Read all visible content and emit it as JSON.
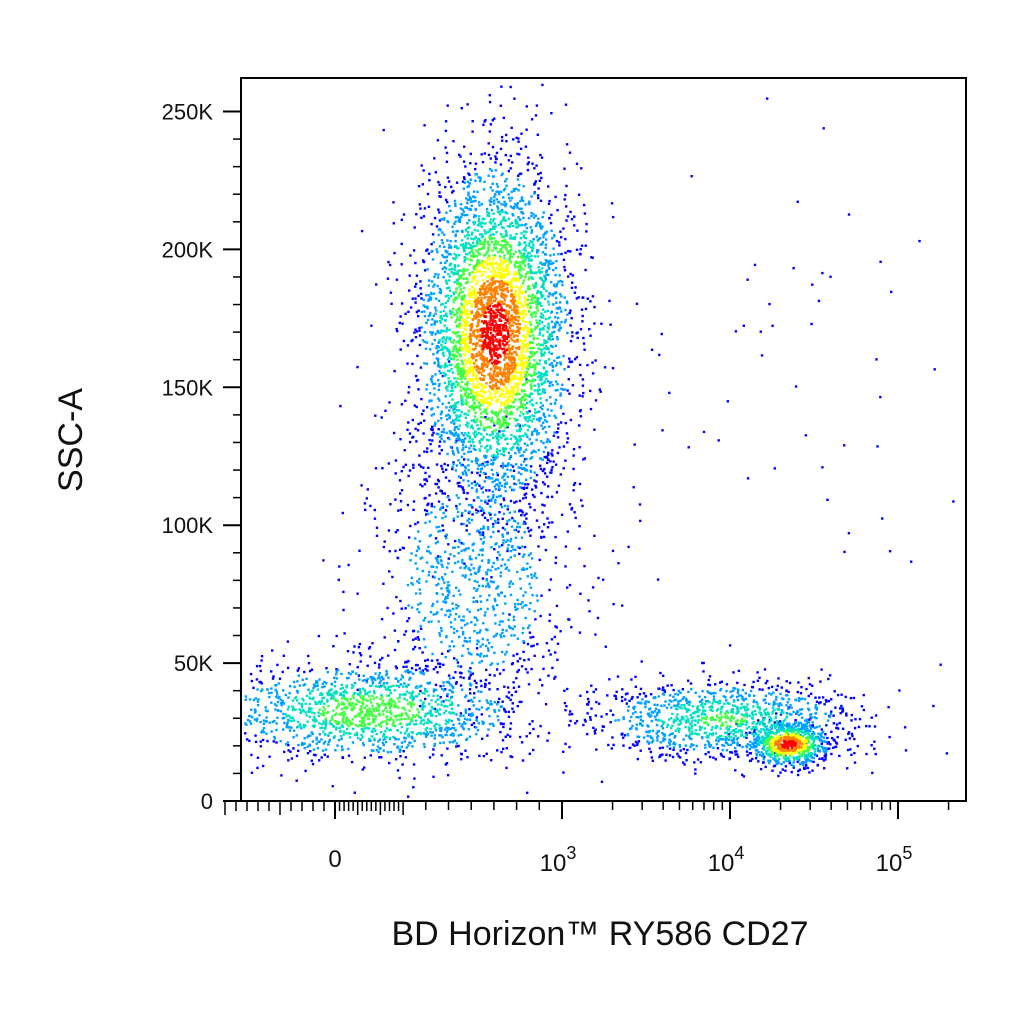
{
  "chart_data": {
    "type": "scatter",
    "subtype": "flow-cytometry density dot plot",
    "title": "",
    "xlabel": "BD Horizon™ RY586 CD27",
    "ylabel": "SSC-A",
    "x_scale": "biexponential",
    "y_scale": "linear",
    "ylim": [
      0,
      262144
    ],
    "xlim": [
      -200,
      262144
    ],
    "x_ticks": [
      {
        "value": 0,
        "label": "0"
      },
      {
        "value": 1000,
        "base": "10",
        "exp": "3"
      },
      {
        "value": 10000,
        "base": "10",
        "exp": "4"
      },
      {
        "value": 100000,
        "base": "10",
        "exp": "5"
      }
    ],
    "y_ticks": [
      {
        "value": 0,
        "label": "0"
      },
      {
        "value": 50000,
        "label": "50K"
      },
      {
        "value": 100000,
        "label": "100K"
      },
      {
        "value": 150000,
        "label": "150K"
      },
      {
        "value": 200000,
        "label": "200K"
      },
      {
        "value": 250000,
        "label": "250K"
      }
    ],
    "color_scale": [
      "#0000ff",
      "#00a0ff",
      "#00e0c0",
      "#40ff40",
      "#ffff00",
      "#ff8000",
      "#ff0000"
    ],
    "grid": false,
    "legend": "none",
    "populations": [
      {
        "name_hint": "CD27-negative lymphocytes",
        "x_center": 150,
        "y_center": 33000,
        "x_spread_decades": 0.45,
        "y_sd": 9000,
        "count": 1400,
        "peak_density": 0.55
      },
      {
        "name_hint": "Granulocytes",
        "x_center": 700,
        "y_center": 170000,
        "x_spread_decades": 0.22,
        "y_sd": 30000,
        "count": 4200,
        "peak_density": 1.0
      },
      {
        "name_hint": "Bridging events",
        "x_center": 600,
        "y_center": 80000,
        "x_spread_decades": 0.3,
        "y_sd": 25000,
        "count": 900,
        "peak_density": 0.25
      },
      {
        "name_hint": "CD27 dim",
        "x_center": 9000,
        "y_center": 30000,
        "x_spread_decades": 0.4,
        "y_sd": 7000,
        "count": 1100,
        "peak_density": 0.45
      },
      {
        "name_hint": "CD27 bright",
        "x_center": 22000,
        "y_center": 21000,
        "x_spread_decades": 0.12,
        "y_sd": 4000,
        "count": 700,
        "peak_density": 1.0
      },
      {
        "name_hint": "Sparse outliers",
        "x_center": 15000,
        "y_center": 150000,
        "x_spread_decades": 0.9,
        "y_sd": 50000,
        "count": 70,
        "peak_density": 0.0
      }
    ]
  }
}
